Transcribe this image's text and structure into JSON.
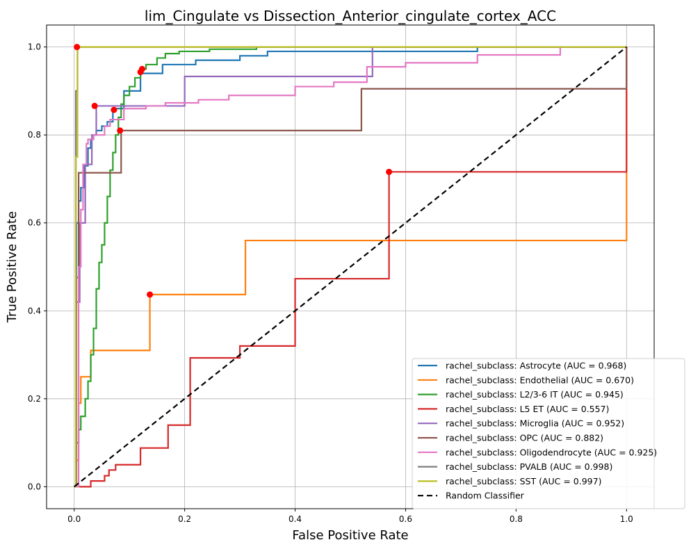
{
  "chart_data": {
    "type": "line",
    "title": "lim_Cingulate vs Dissection_Anterior_cingulate_cortex_ACC",
    "xlabel": "False Positive Rate",
    "ylabel": "True Positive Rate",
    "xlim": [
      -0.05,
      1.05
    ],
    "ylim": [
      -0.05,
      1.05
    ],
    "xticks": [
      "0.0",
      "0.2",
      "0.4",
      "0.6",
      "0.8",
      "1.0"
    ],
    "yticks": [
      "0.0",
      "0.2",
      "0.4",
      "0.6",
      "0.8",
      "1.0"
    ],
    "grid": true,
    "legend_position": "bottom-right",
    "series": [
      {
        "name": "rachel_subclass: Astrocyte (AUC = 0.968)",
        "color": "#1f77b4",
        "x": [
          0,
          0.004,
          0.004,
          0.008,
          0.008,
          0.012,
          0.012,
          0.018,
          0.018,
          0.025,
          0.025,
          0.03,
          0.03,
          0.035,
          0.035,
          0.04,
          0.04,
          0.05,
          0.05,
          0.06,
          0.06,
          0.07,
          0.07,
          0.09,
          0.09,
          0.12,
          0.12,
          0.16,
          0.16,
          0.22,
          0.22,
          0.3,
          0.3,
          0.35,
          0.35,
          0.73,
          0.73,
          1.0
        ],
        "y": [
          0,
          0,
          0.6,
          0.6,
          0.65,
          0.65,
          0.68,
          0.68,
          0.73,
          0.73,
          0.77,
          0.77,
          0.79,
          0.79,
          0.8,
          0.8,
          0.81,
          0.81,
          0.82,
          0.82,
          0.83,
          0.83,
          0.86,
          0.86,
          0.9,
          0.9,
          0.94,
          0.94,
          0.96,
          0.96,
          0.97,
          0.97,
          0.98,
          0.98,
          0.99,
          0.99,
          1.0,
          1.0
        ]
      },
      {
        "name": "rachel_subclass: Endothelial (AUC = 0.670)",
        "color": "#ff7f0e",
        "x": [
          0,
          0.004,
          0.004,
          0.008,
          0.008,
          0.012,
          0.012,
          0.02,
          0.02,
          0.03,
          0.03,
          0.137,
          0.137,
          0.31,
          0.31,
          1.0,
          1.0
        ],
        "y": [
          0,
          0,
          0.06,
          0.06,
          0.19,
          0.19,
          0.25,
          0.25,
          0.25,
          0.25,
          0.31,
          0.31,
          0.437,
          0.437,
          0.56,
          0.56,
          1.0
        ]
      },
      {
        "name": "rachel_subclass: L2/3-6 IT (AUC = 0.945)",
        "color": "#2ca02c",
        "x": [
          0,
          0.004,
          0.004,
          0.008,
          0.008,
          0.012,
          0.012,
          0.02,
          0.02,
          0.025,
          0.025,
          0.03,
          0.03,
          0.035,
          0.035,
          0.04,
          0.04,
          0.045,
          0.045,
          0.05,
          0.05,
          0.055,
          0.055,
          0.06,
          0.06,
          0.065,
          0.065,
          0.07,
          0.07,
          0.075,
          0.075,
          0.08,
          0.08,
          0.085,
          0.085,
          0.09,
          0.09,
          0.1,
          0.1,
          0.11,
          0.11,
          0.12,
          0.12,
          0.13,
          0.13,
          0.15,
          0.15,
          0.165,
          0.165,
          0.19,
          0.19,
          0.245,
          0.245,
          0.33,
          0.33,
          1.0
        ],
        "y": [
          0,
          0,
          0.1,
          0.1,
          0.13,
          0.13,
          0.16,
          0.16,
          0.2,
          0.2,
          0.24,
          0.24,
          0.3,
          0.3,
          0.36,
          0.36,
          0.45,
          0.45,
          0.51,
          0.51,
          0.55,
          0.55,
          0.6,
          0.6,
          0.66,
          0.66,
          0.72,
          0.72,
          0.76,
          0.76,
          0.8,
          0.8,
          0.84,
          0.84,
          0.87,
          0.87,
          0.89,
          0.89,
          0.91,
          0.91,
          0.93,
          0.93,
          0.95,
          0.95,
          0.96,
          0.96,
          0.975,
          0.975,
          0.985,
          0.985,
          0.99,
          0.99,
          0.995,
          0.995,
          1.0,
          1.0
        ]
      },
      {
        "name": "rachel_subclass: L5 ET (AUC = 0.557)",
        "color": "#d62728",
        "x": [
          0,
          0.03,
          0.03,
          0.055,
          0.055,
          0.063,
          0.063,
          0.075,
          0.075,
          0.12,
          0.12,
          0.17,
          0.17,
          0.21,
          0.21,
          0.25,
          0.25,
          0.3,
          0.3,
          0.4,
          0.4,
          0.57,
          0.57,
          1.0,
          1.0
        ],
        "y": [
          0,
          0,
          0.013,
          0.013,
          0.025,
          0.025,
          0.038,
          0.038,
          0.05,
          0.05,
          0.088,
          0.088,
          0.14,
          0.14,
          0.293,
          0.293,
          0.293,
          0.293,
          0.32,
          0.32,
          0.473,
          0.473,
          0.716,
          0.716,
          1.0
        ]
      },
      {
        "name": "rachel_subclass: Microglia (AUC = 0.952)",
        "color": "#9467bd",
        "x": [
          0,
          0.004,
          0.004,
          0.01,
          0.01,
          0.02,
          0.02,
          0.032,
          0.032,
          0.04,
          0.04,
          0.16,
          0.16,
          0.2,
          0.2,
          0.54,
          0.54,
          1.0
        ],
        "y": [
          0,
          0,
          0.42,
          0.42,
          0.6,
          0.6,
          0.733,
          0.733,
          0.8,
          0.8,
          0.866,
          0.866,
          0.866,
          0.866,
          0.933,
          0.933,
          1.0,
          1.0
        ]
      },
      {
        "name": "rachel_subclass: OPC (AUC = 0.882)",
        "color": "#8c564b",
        "x": [
          0,
          0.004,
          0.004,
          0.008,
          0.008,
          0.016,
          0.016,
          0.085,
          0.085,
          0.52,
          0.52,
          1.0,
          1.0
        ],
        "y": [
          0,
          0,
          0.476,
          0.476,
          0.714,
          0.714,
          0.714,
          0.714,
          0.81,
          0.81,
          0.905,
          0.905,
          1.0
        ]
      },
      {
        "name": "rachel_subclass: Oligodendrocyte (AUC = 0.925)",
        "color": "#e377c2",
        "x": [
          0,
          0.008,
          0.008,
          0.012,
          0.012,
          0.016,
          0.016,
          0.022,
          0.022,
          0.025,
          0.025,
          0.035,
          0.035,
          0.055,
          0.055,
          0.065,
          0.065,
          0.09,
          0.09,
          0.13,
          0.13,
          0.165,
          0.165,
          0.2,
          0.2,
          0.225,
          0.225,
          0.28,
          0.28,
          0.4,
          0.4,
          0.47,
          0.47,
          0.53,
          0.53,
          0.6,
          0.6,
          0.73,
          0.73,
          0.88,
          0.88,
          1.0
        ],
        "y": [
          0,
          0,
          0.5,
          0.5,
          0.63,
          0.63,
          0.733,
          0.733,
          0.78,
          0.78,
          0.79,
          0.79,
          0.8,
          0.8,
          0.82,
          0.82,
          0.835,
          0.835,
          0.86,
          0.86,
          0.866,
          0.866,
          0.873,
          0.873,
          0.873,
          0.873,
          0.88,
          0.88,
          0.89,
          0.89,
          0.91,
          0.91,
          0.92,
          0.92,
          0.955,
          0.955,
          0.964,
          0.964,
          0.982,
          0.982,
          1.0,
          1.0
        ]
      },
      {
        "name": "rachel_subclass: PVALB (AUC = 0.998)",
        "color": "#7f7f7f",
        "x": [
          0,
          0.003,
          0.003,
          0.006,
          0.006,
          1.0
        ],
        "y": [
          0,
          0,
          0.9,
          0.9,
          1.0,
          1.0
        ]
      },
      {
        "name": "rachel_subclass: SST (AUC = 0.997)",
        "color": "#bcbd22",
        "x": [
          0,
          0.003,
          0.003,
          0.006,
          0.006,
          1.0
        ],
        "y": [
          0,
          0,
          0.75,
          0.75,
          1.0,
          1.0
        ]
      },
      {
        "name": "Random Classifier",
        "color": "#000000",
        "dashed": true,
        "x": [
          0,
          1
        ],
        "y": [
          0,
          1
        ]
      }
    ],
    "markers": [
      {
        "x": 0.005,
        "y": 1.0
      },
      {
        "x": 0.123,
        "y": 0.95
      },
      {
        "x": 0.12,
        "y": 0.943
      },
      {
        "x": 0.037,
        "y": 0.866
      },
      {
        "x": 0.072,
        "y": 0.857
      },
      {
        "x": 0.083,
        "y": 0.81
      },
      {
        "x": 0.57,
        "y": 0.716
      },
      {
        "x": 0.137,
        "y": 0.437
      }
    ],
    "marker_color": "#ff0000"
  }
}
